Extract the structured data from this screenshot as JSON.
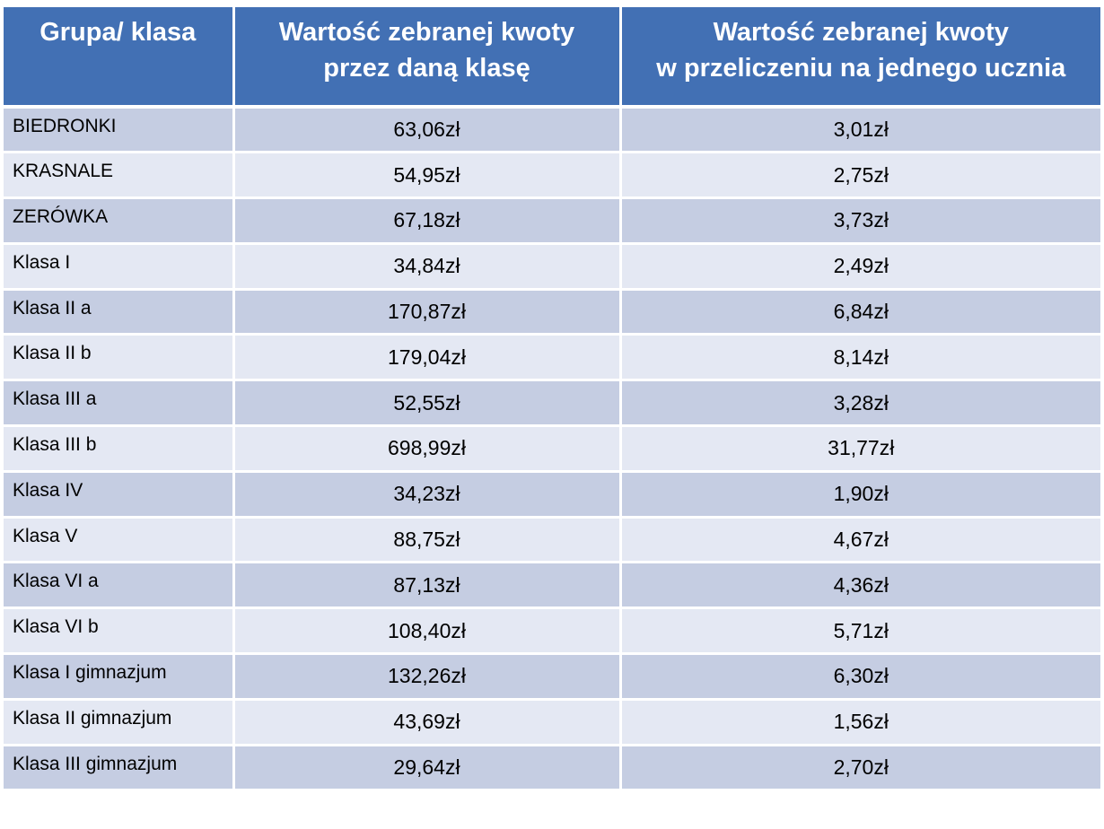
{
  "table": {
    "headers": [
      "Grupa/ klasa",
      "Wartość zebranej kwoty\nprzez daną  klasę",
      "Wartość zebranej kwoty\nw przeliczeniu na jednego ucznia"
    ],
    "rows": [
      {
        "group": "BIEDRONKI",
        "total": "63,06zł",
        "per_student": "3,01zł"
      },
      {
        "group": "KRASNALE",
        "total": "54,95zł",
        "per_student": "2,75zł"
      },
      {
        "group": "ZERÓWKA",
        "total": "67,18zł",
        "per_student": "3,73zł"
      },
      {
        "group": "Klasa I",
        "total": "34,84zł",
        "per_student": "2,49zł"
      },
      {
        "group": "Klasa II a",
        "total": "170,87zł",
        "per_student": "6,84zł"
      },
      {
        "group": "Klasa II b",
        "total": "179,04zł",
        "per_student": "8,14zł"
      },
      {
        "group": "Klasa III a",
        "total": "52,55zł",
        "per_student": "3,28zł"
      },
      {
        "group": "Klasa III b",
        "total": "698,99zł",
        "per_student": "31,77zł"
      },
      {
        "group": "Klasa IV",
        "total": "34,23zł",
        "per_student": "1,90zł"
      },
      {
        "group": "Klasa V",
        "total": "88,75zł",
        "per_student": "4,67zł"
      },
      {
        "group": "Klasa VI a",
        "total": "87,13zł",
        "per_student": "4,36zł"
      },
      {
        "group": "Klasa VI b",
        "total": "108,40zł",
        "per_student": "5,71zł"
      },
      {
        "group": "Klasa I gimnazjum",
        "total": "132,26zł",
        "per_student": "6,30zł"
      },
      {
        "group": "Klasa II gimnazjum",
        "total": "43,69zł",
        "per_student": "1,56zł"
      },
      {
        "group": "Klasa III gimnazjum",
        "total": "29,64zł",
        "per_student": "2,70zł"
      }
    ]
  },
  "colors": {
    "header_bg": "#4270b4",
    "row_dark": "#c5cde2",
    "row_light": "#e4e8f3"
  }
}
